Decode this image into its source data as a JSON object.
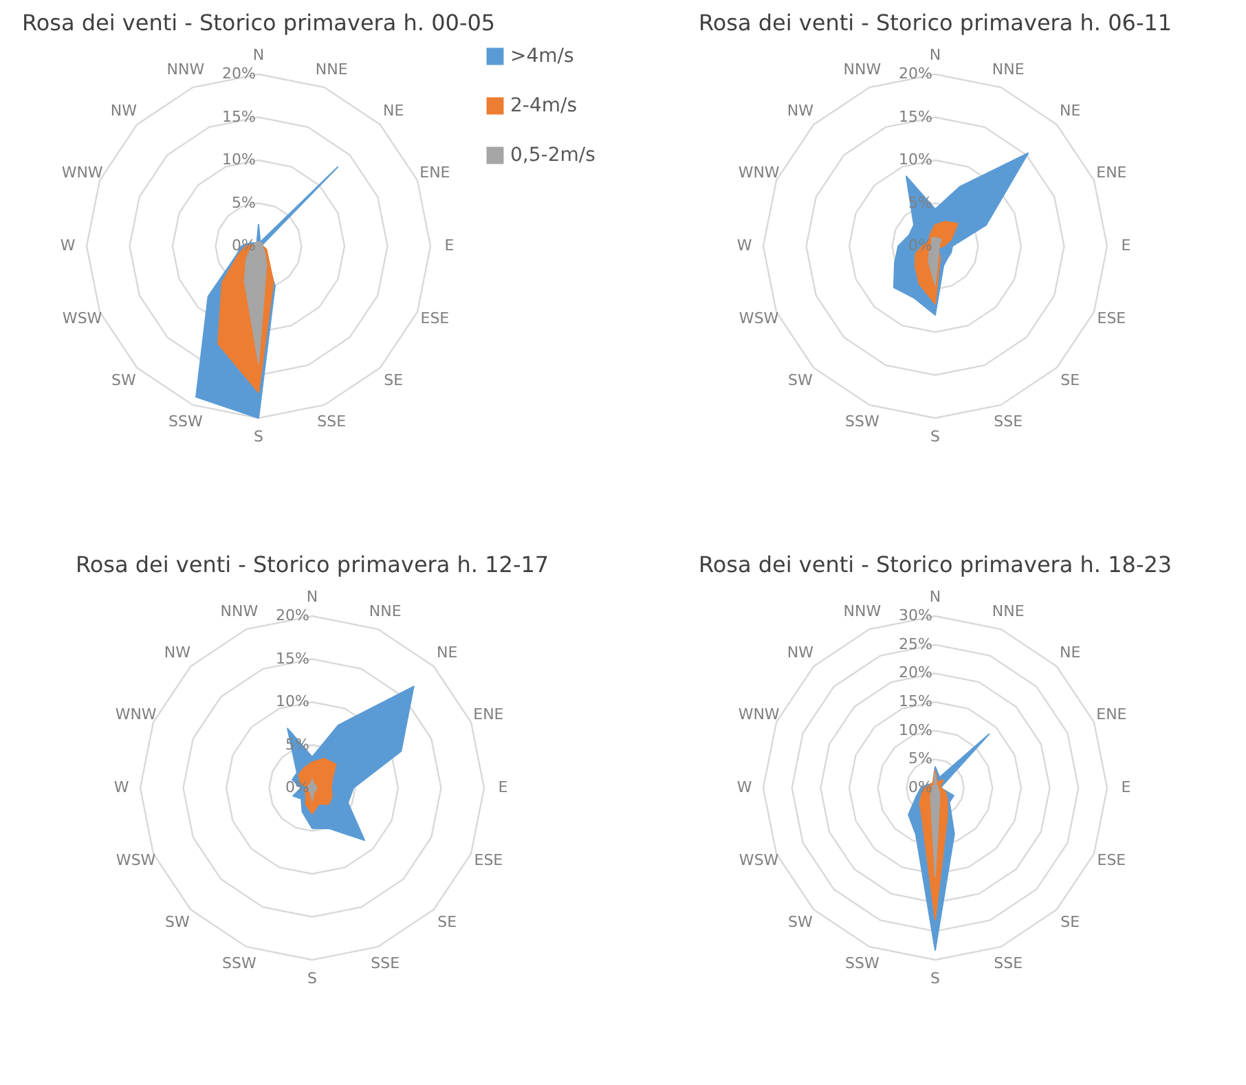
{
  "chart_data": [
    {
      "type": "radar",
      "title": "Rosa dei venti - Storico primavera h. 00-05",
      "categories": [
        "N",
        "NNE",
        "NE",
        "ENE",
        "E",
        "ESE",
        "SE",
        "SSE",
        "S",
        "SSW",
        "SW",
        "WSW",
        "W",
        "WNW",
        "NW",
        "NNW"
      ],
      "ylim": [
        0,
        20
      ],
      "yticks": [
        {
          "value": 0,
          "label": "0%"
        },
        {
          "value": 5,
          "label": "5%"
        },
        {
          "value": 10,
          "label": "10%"
        },
        {
          "value": 15,
          "label": "15%"
        },
        {
          "value": 20,
          "label": "20%"
        }
      ],
      "grid": true,
      "legend": "right",
      "series": [
        {
          "name": ">4m/s",
          "color": "#5b9bd5",
          "values": [
            2.5,
            0.5,
            13,
            0.5,
            0.5,
            0.5,
            1,
            5,
            20,
            19,
            8.3,
            2.8,
            2,
            1,
            0.5,
            0.5
          ]
        },
        {
          "name": "2-4m/s",
          "color": "#ed7d31",
          "values": [
            0.5,
            0.5,
            0.5,
            0.5,
            0.5,
            1,
            1.5,
            4.5,
            17,
            12.3,
            6,
            2.5,
            1.5,
            0.5,
            0.5,
            0.5
          ]
        },
        {
          "name": "0,5-2m/s",
          "color": "#a5a5a5",
          "values": [
            0.5,
            0.5,
            0.5,
            0.5,
            0.5,
            0.5,
            1,
            2.4,
            13.6,
            4.3,
            2,
            1,
            0.5,
            0.5,
            0.5,
            0.5
          ]
        }
      ]
    },
    {
      "type": "radar",
      "title": "Rosa dei venti - Storico primavera h. 06-11",
      "categories": [
        "N",
        "NNE",
        "NE",
        "ENE",
        "E",
        "ESE",
        "SE",
        "SSE",
        "S",
        "SSW",
        "SW",
        "WSW",
        "W",
        "WNW",
        "NW",
        "NNW"
      ],
      "ylim": [
        0,
        20
      ],
      "yticks": [
        {
          "value": 0,
          "label": "0%"
        },
        {
          "value": 5,
          "label": "5%"
        },
        {
          "value": 10,
          "label": "10%"
        },
        {
          "value": 15,
          "label": "15%"
        },
        {
          "value": 20,
          "label": "20%"
        }
      ],
      "grid": true,
      "series": [
        {
          "color": "#5b9bd5",
          "values": [
            4.3,
            7.5,
            15.3,
            6.4,
            2,
            2,
            2,
            2.5,
            8,
            6.5,
            6.8,
            5.1,
            4.3,
            3.3,
            3.5,
            8.8
          ]
        },
        {
          "color": "#ed7d31",
          "values": [
            2.5,
            3.1,
            3.7,
            2,
            1,
            0.5,
            0.5,
            1.5,
            6.7,
            4.8,
            3.3,
            2.5,
            1.5,
            1,
            1,
            1.5
          ]
        },
        {
          "color": "#a5a5a5",
          "values": [
            1,
            1,
            1,
            0.5,
            0.5,
            0.5,
            0.5,
            1,
            4.5,
            2,
            1,
            0.5,
            0.5,
            0.5,
            0.5,
            1
          ]
        }
      ]
    },
    {
      "type": "radar",
      "title": "Rosa dei venti - Storico primavera h. 12-17",
      "categories": [
        "N",
        "NNE",
        "NE",
        "ENE",
        "E",
        "ESE",
        "SE",
        "SSE",
        "S",
        "SSW",
        "SW",
        "WSW",
        "W",
        "WNW",
        "NW",
        "NNW"
      ],
      "ylim": [
        0,
        20
      ],
      "yticks": [
        {
          "value": 0,
          "label": "0%"
        },
        {
          "value": 5,
          "label": "5%"
        },
        {
          "value": 10,
          "label": "10%"
        },
        {
          "value": 15,
          "label": "15%"
        },
        {
          "value": 20,
          "label": "20%"
        }
      ],
      "grid": true,
      "series": [
        {
          "color": "#5b9bd5",
          "values": [
            3.6,
            7.9,
            16.7,
            11.2,
            4.8,
            4.5,
            8.6,
            5.1,
            4.7,
            3,
            1.8,
            2.4,
            1.3,
            2.5,
            2.5,
            7.5
          ]
        },
        {
          "color": "#ed7d31",
          "values": [
            3,
            3.7,
            3.9,
            2.5,
            2.2,
            2.5,
            2.7,
            2,
            3,
            2,
            1,
            1,
            0.5,
            1.5,
            2.2,
            2.5
          ]
        },
        {
          "color": "#a5a5a5",
          "values": [
            1,
            0.5,
            0.5,
            0.5,
            0.5,
            0.5,
            0.5,
            0.5,
            1.5,
            0.5,
            0.5,
            0.5,
            0.5,
            0.5,
            0.5,
            0.5
          ]
        }
      ]
    },
    {
      "type": "radar",
      "title": "Rosa dei venti - Storico primavera h. 18-23",
      "categories": [
        "N",
        "NNE",
        "NE",
        "ENE",
        "E",
        "ESE",
        "SE",
        "SSE",
        "S",
        "SSW",
        "SW",
        "WSW",
        "W",
        "WNW",
        "NW",
        "NNW"
      ],
      "ylim": [
        0,
        30
      ],
      "yticks": [
        {
          "value": 0,
          "label": "0%"
        },
        {
          "value": 5,
          "label": "5%"
        },
        {
          "value": 10,
          "label": "10%"
        },
        {
          "value": 15,
          "label": "15%"
        },
        {
          "value": 20,
          "label": "20%"
        },
        {
          "value": 25,
          "label": "25%"
        },
        {
          "value": 30,
          "label": "30%"
        }
      ],
      "grid": true,
      "series": [
        {
          "color": "#5b9bd5",
          "values": [
            3.7,
            2,
            13.3,
            1.5,
            1,
            3.5,
            3.5,
            8.7,
            28.3,
            8.8,
            6.6,
            3.5,
            2.5,
            1.5,
            1,
            1
          ]
        },
        {
          "color": "#ed7d31",
          "values": [
            3,
            1,
            2,
            1,
            1,
            2,
            3,
            5.5,
            23,
            5.9,
            3.8,
            2.5,
            2,
            1,
            1,
            1
          ]
        },
        {
          "color": "#a5a5a5",
          "values": [
            2.5,
            0.5,
            0.5,
            0.5,
            0.5,
            0.5,
            1,
            2,
            15.5,
            2,
            1,
            0.5,
            0.5,
            0.5,
            0.5,
            0.5
          ]
        }
      ]
    }
  ]
}
